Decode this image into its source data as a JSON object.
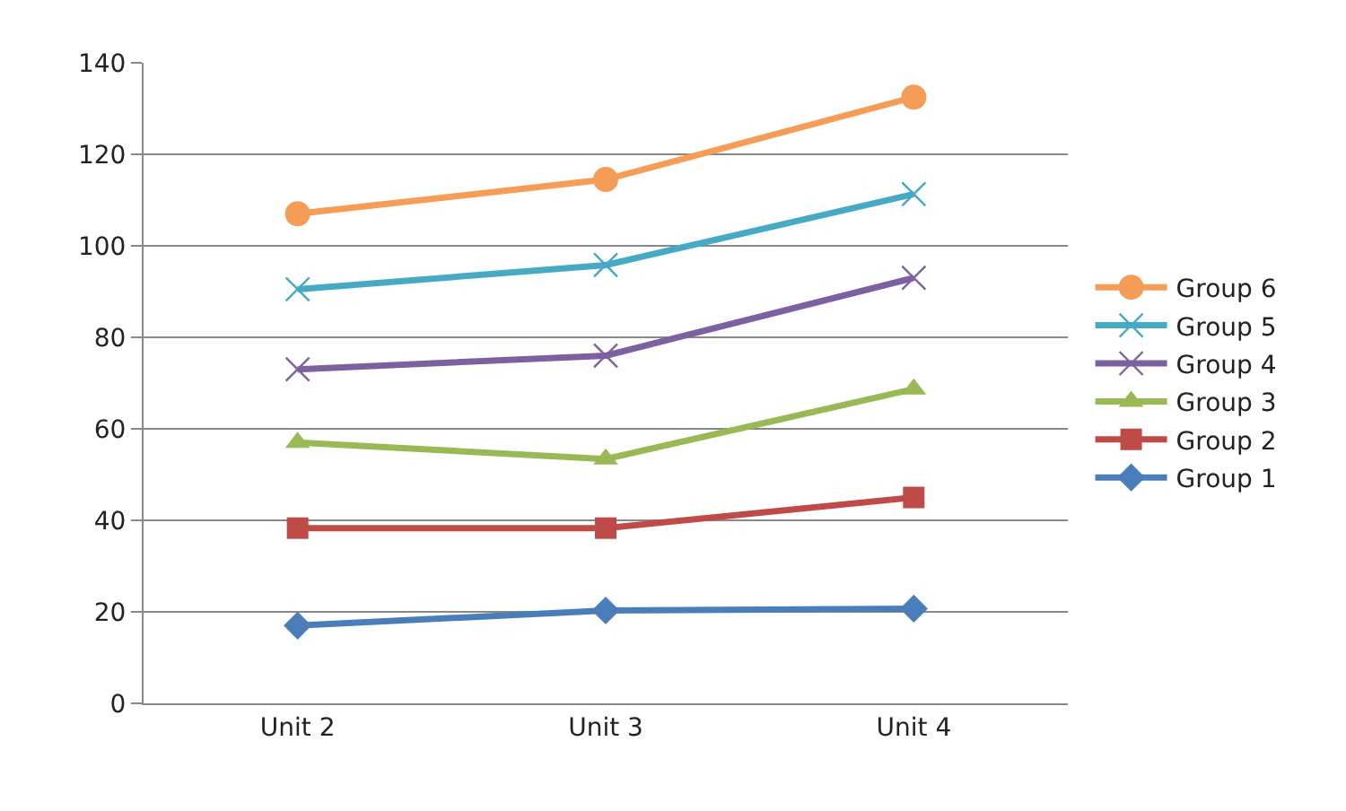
{
  "chart_data": {
    "type": "line",
    "categories": [
      "Unit 2",
      "Unit 3",
      "Unit 4"
    ],
    "series": [
      {
        "name": "Group 1",
        "color": "#4a7ebb",
        "marker": "diamond",
        "values": [
          17,
          20.3,
          20.7
        ]
      },
      {
        "name": "Group 2",
        "color": "#be4b48",
        "marker": "square",
        "values": [
          38.3,
          38.3,
          45
        ]
      },
      {
        "name": "Group 3",
        "color": "#98b954",
        "marker": "triangle",
        "values": [
          57,
          53.4,
          68.7
        ]
      },
      {
        "name": "Group 4",
        "color": "#7d60a0",
        "marker": "cross",
        "values": [
          73,
          76,
          93
        ]
      },
      {
        "name": "Group 5",
        "color": "#46aac5",
        "marker": "cross",
        "values": [
          90.5,
          95.8,
          111.3
        ]
      },
      {
        "name": "Group 6",
        "color": "#f59d56",
        "marker": "circle",
        "values": [
          107,
          114.5,
          132.5
        ]
      }
    ],
    "ylim": [
      0,
      140
    ],
    "yticks": [
      0,
      20,
      40,
      60,
      80,
      100,
      120,
      140
    ],
    "grid": "y",
    "legend": "right",
    "line_style": "solid"
  }
}
